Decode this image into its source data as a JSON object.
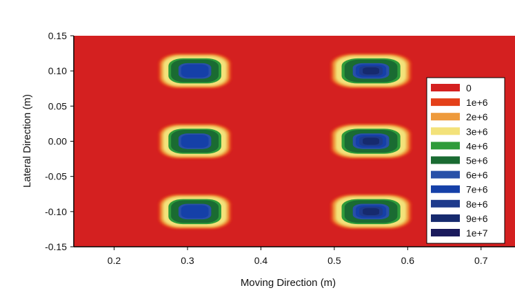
{
  "chart_data": {
    "type": "heatmap",
    "title": "",
    "xlabel": "Moving Direction (m)",
    "ylabel": "Lateral Direction (m)",
    "xlim": [
      0.145,
      0.75
    ],
    "ylim": [
      -0.15,
      0.15
    ],
    "x_ticks": [
      0.2,
      0.3,
      0.4,
      0.5,
      0.6,
      0.7
    ],
    "x_tick_labels": [
      "0.2",
      "0.3",
      "0.4",
      "0.5",
      "0.6",
      "0.7"
    ],
    "y_ticks": [
      0.15,
      0.1,
      0.05,
      0.0,
      -0.05,
      -0.1,
      -0.15
    ],
    "y_tick_labels": [
      "0.15",
      "0.10",
      "0.05",
      "0.00",
      "-0.05",
      "-0.10",
      "-0.15"
    ],
    "grid": false,
    "legend_position": "right",
    "background_level": 0,
    "levels": [
      {
        "label": "0",
        "value": 0,
        "color": "#d42020"
      },
      {
        "label": "1e+6",
        "value": 1000000,
        "color": "#e4401a"
      },
      {
        "label": "2e+6",
        "value": 2000000,
        "color": "#ee9a3c"
      },
      {
        "label": "3e+6",
        "value": 3000000,
        "color": "#f3e27a"
      },
      {
        "label": "4e+6",
        "value": 4000000,
        "color": "#2f9b3a"
      },
      {
        "label": "5e+6",
        "value": 5000000,
        "color": "#1a6b32"
      },
      {
        "label": "6e+6",
        "value": 6000000,
        "color": "#2850a8"
      },
      {
        "label": "7e+6",
        "value": 7000000,
        "color": "#1540a8"
      },
      {
        "label": "8e+6",
        "value": 8000000,
        "color": "#1e3a8c"
      },
      {
        "label": "9e+6",
        "value": 9000000,
        "color": "#162a6e"
      },
      {
        "label": "1e+7",
        "value": 10000000,
        "color": "#1a1a5c"
      }
    ],
    "peaks": [
      {
        "x": 0.31,
        "y": 0.1,
        "half_width_x": 0.036,
        "half_width_y": 0.017,
        "peak": 7000000
      },
      {
        "x": 0.55,
        "y": 0.1,
        "half_width_x": 0.04,
        "half_width_y": 0.017,
        "peak": 9500000
      },
      {
        "x": 0.31,
        "y": 0.0,
        "half_width_x": 0.036,
        "half_width_y": 0.017,
        "peak": 7000000
      },
      {
        "x": 0.55,
        "y": 0.0,
        "half_width_x": 0.04,
        "half_width_y": 0.017,
        "peak": 9500000
      },
      {
        "x": 0.31,
        "y": -0.1,
        "half_width_x": 0.036,
        "half_width_y": 0.017,
        "peak": 7000000
      },
      {
        "x": 0.55,
        "y": -0.1,
        "half_width_x": 0.04,
        "half_width_y": 0.017,
        "peak": 9500000
      }
    ]
  }
}
